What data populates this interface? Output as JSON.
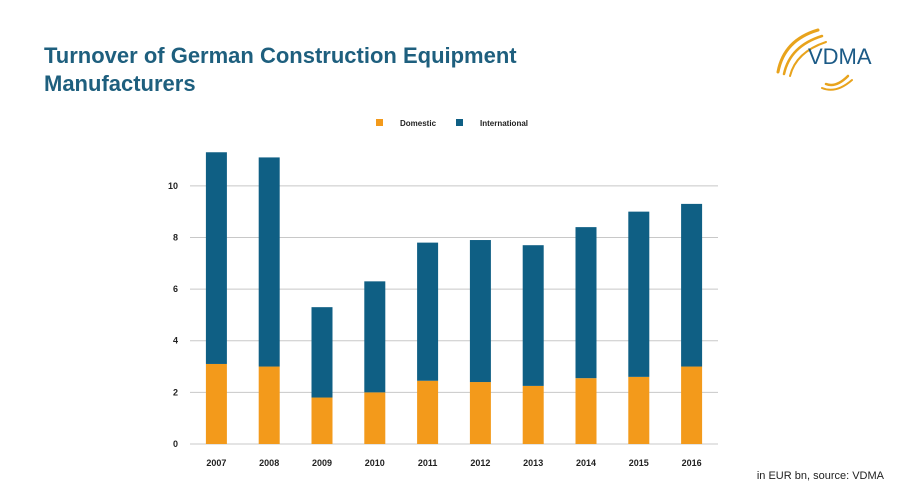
{
  "slide": {
    "title": "Turnover of German Construction Equipment Manufacturers",
    "logo_text": "VDMA",
    "source_note": "in EUR bn, source: VDMA"
  },
  "colors": {
    "title": "#1e5f7e",
    "domestic": "#f39a1b",
    "international": "#0f5f84",
    "gridline": "#c8c8c8",
    "logo_gold": "#e8a31c",
    "logo_text": "#1b5a86"
  },
  "chart_data": {
    "type": "bar",
    "stacked": true,
    "categories": [
      "2007",
      "2008",
      "2009",
      "2010",
      "2011",
      "2012",
      "2013",
      "2014",
      "2015",
      "2016"
    ],
    "series": [
      {
        "name": "Domestic",
        "color": "#f39a1b",
        "values": [
          3.1,
          3.0,
          1.8,
          2.0,
          2.45,
          2.4,
          2.25,
          2.55,
          2.6,
          3.0
        ]
      },
      {
        "name": "International",
        "color": "#0f5f84",
        "values": [
          8.2,
          8.1,
          3.5,
          4.3,
          5.35,
          5.5,
          5.45,
          5.85,
          6.4,
          6.3
        ]
      }
    ],
    "ylim": [
      0,
      11
    ],
    "yticks": [
      0,
      2,
      4,
      6,
      8,
      10
    ],
    "grid": true,
    "legend_position": "top"
  }
}
